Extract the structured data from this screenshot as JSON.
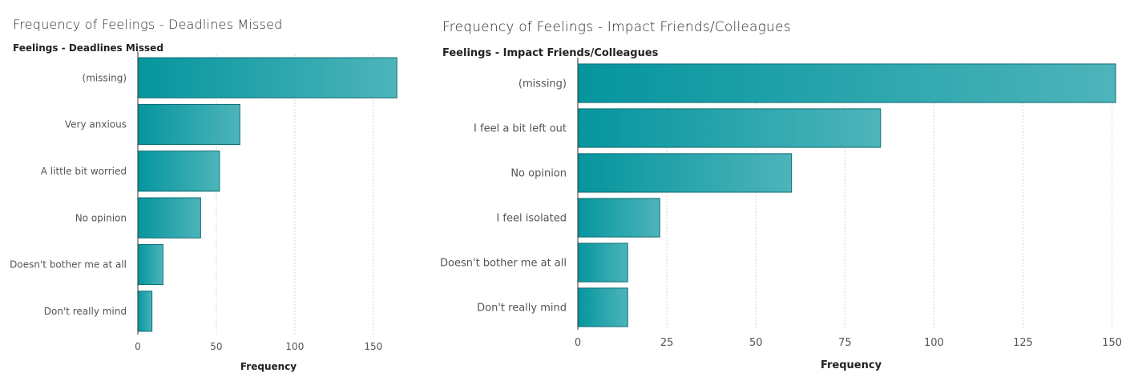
{
  "colors": {
    "bar_start": "#05959e",
    "bar_end": "#4db4ba",
    "bar_stroke": "#0c6b70",
    "grid": "#d8d8d8",
    "axis": "#333333",
    "text": "#555555",
    "title": "#2b2b2b"
  },
  "chart_data": [
    {
      "type": "bar",
      "orientation": "horizontal",
      "title": "Frequency of Feelings - Deadlines Missed",
      "ylabel": "Feelings - Deadlines Missed",
      "xlabel": "Frequency",
      "categories": [
        "(missing)",
        "Very anxious",
        "A little bit worried",
        "No opinion",
        "Doesn't bother me at all",
        "Don't really mind"
      ],
      "values": [
        165,
        65,
        52,
        40,
        16,
        9
      ],
      "xticks": [
        0,
        50,
        100,
        150
      ],
      "xlim": [
        0,
        170
      ],
      "grid": true,
      "legend": "none"
    },
    {
      "type": "bar",
      "orientation": "horizontal",
      "title": "Frequency of Feelings - Impact Friends/Colleagues",
      "ylabel": "Feelings - Impact Friends/Colleagues",
      "xlabel": "Frequency",
      "categories": [
        "(missing)",
        "I feel a bit left out",
        "No opinion",
        "I feel isolated",
        "Doesn't bother me at all",
        "Don't really mind"
      ],
      "values": [
        151,
        85,
        60,
        23,
        14,
        14
      ],
      "xticks": [
        0,
        25,
        50,
        75,
        100,
        125,
        150
      ],
      "xlim": [
        0,
        153
      ],
      "grid": true,
      "legend": "none"
    }
  ]
}
